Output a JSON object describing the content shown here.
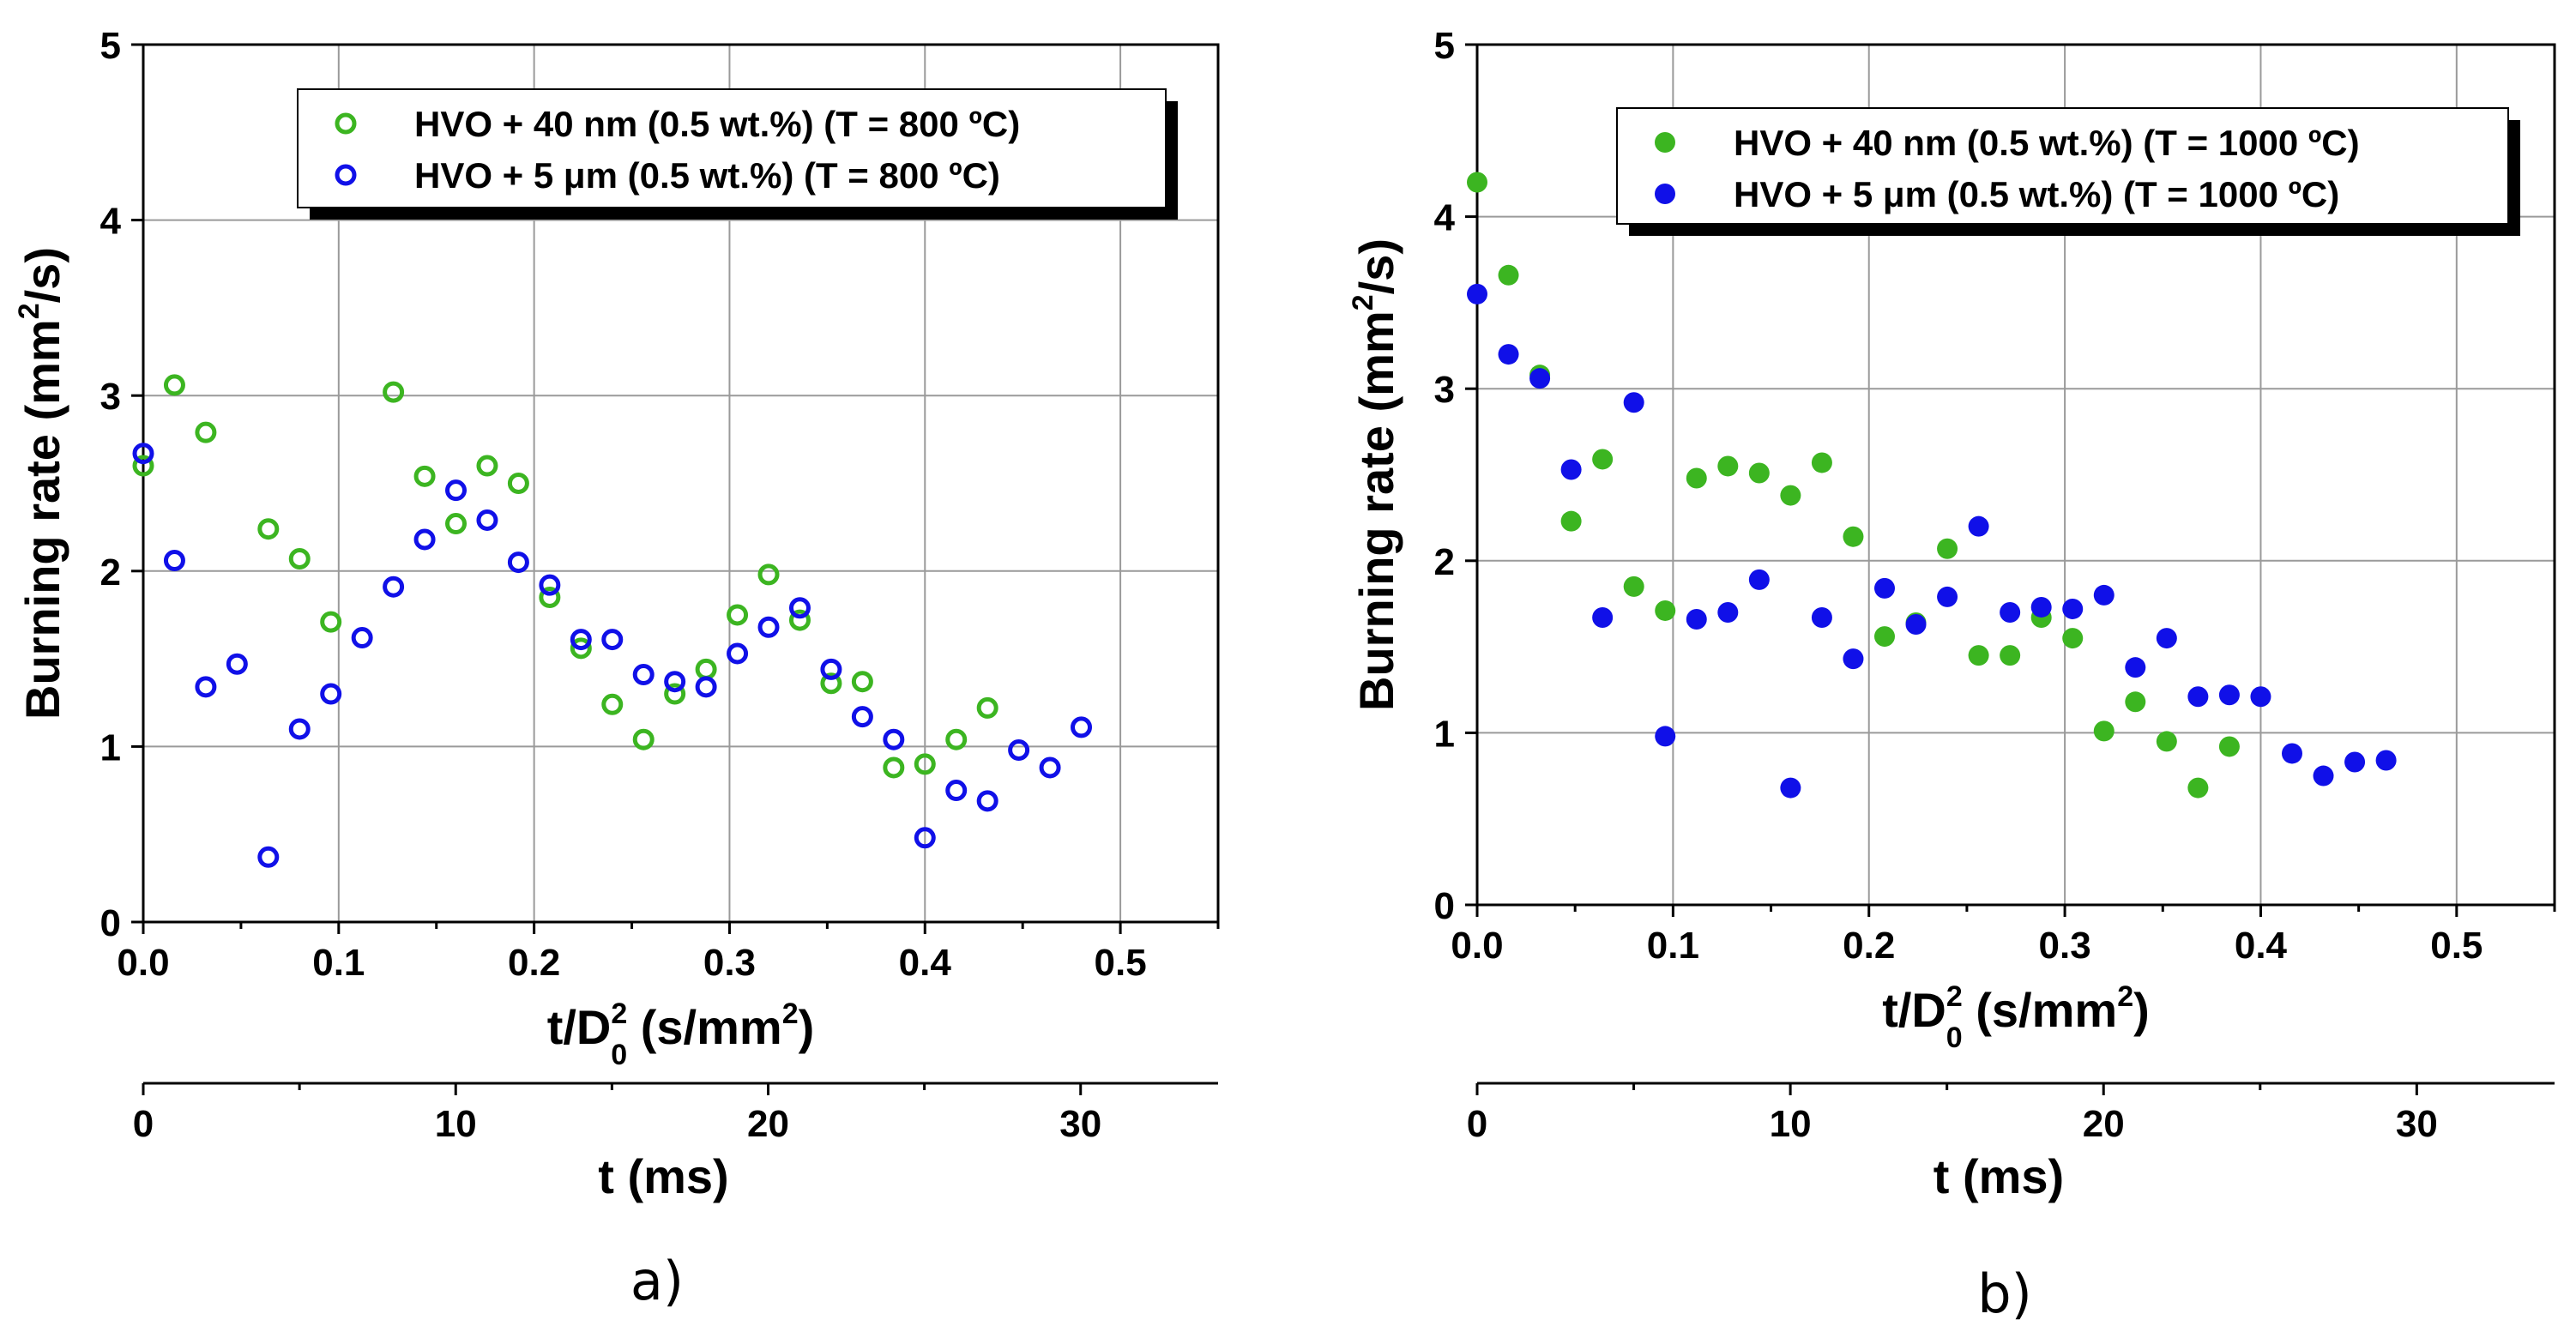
{
  "chart_data": [
    {
      "type": "scatter",
      "panel_label": "a)",
      "xlabel": "t/D",
      "xlabel_exp": "2",
      "xlabel_sub": "0",
      "xlabel_units": " (s/mm",
      "xlabel_units_exp": "2",
      "xlabel_close": ")",
      "ylabel": "Burning rate (mm",
      "ylabel_exp": "2",
      "ylabel_close": "/s)",
      "secondary_xlabel": "t (ms)",
      "xlim": [
        0,
        0.55
      ],
      "ylim": [
        0,
        5
      ],
      "xticks": [
        0.0,
        0.1,
        0.2,
        0.3,
        0.4,
        0.5
      ],
      "xtick_labels": [
        "0.0",
        "0.1",
        "0.2",
        "0.3",
        "0.4",
        "0.5"
      ],
      "yticks": [
        0,
        1,
        2,
        3,
        4,
        5
      ],
      "ytick_labels": [
        "0",
        "1",
        "2",
        "3",
        "4",
        "5"
      ],
      "secondary_xlim": [
        0,
        34.4
      ],
      "secondary_xticks": [
        0,
        10,
        20,
        30
      ],
      "secondary_xtick_labels": [
        "0",
        "10",
        "20",
        "30"
      ],
      "grid": true,
      "legend_position": "top-right",
      "marker": "open-circle",
      "series": [
        {
          "name": "HVO + 40 nm (0.5 wt.%) (T = 800 ºC)",
          "color": "#3cb521",
          "x": [
            0.0,
            0.016,
            0.032,
            0.064,
            0.08,
            0.096,
            0.128,
            0.144,
            0.16,
            0.176,
            0.192,
            0.208,
            0.224,
            0.24,
            0.256,
            0.272,
            0.288,
            0.304,
            0.32,
            0.336,
            0.352,
            0.368,
            0.384,
            0.4,
            0.416,
            0.432
          ],
          "y": [
            2.6,
            3.06,
            2.79,
            2.24,
            2.07,
            1.71,
            3.02,
            2.54,
            2.27,
            2.6,
            2.5,
            1.85,
            1.56,
            1.24,
            1.04,
            1.3,
            1.44,
            1.75,
            1.98,
            1.72,
            1.36,
            1.37,
            0.88,
            0.9,
            1.04,
            1.22
          ]
        },
        {
          "name": "HVO + 5 μm (0.5 wt.%) (T = 800 ºC)",
          "color": "#1010e8",
          "x": [
            0.0,
            0.016,
            0.032,
            0.048,
            0.064,
            0.08,
            0.096,
            0.112,
            0.128,
            0.144,
            0.16,
            0.176,
            0.192,
            0.208,
            0.224,
            0.24,
            0.256,
            0.272,
            0.288,
            0.304,
            0.32,
            0.336,
            0.352,
            0.368,
            0.384,
            0.4,
            0.416,
            0.432,
            0.448,
            0.464,
            0.48
          ],
          "y": [
            2.67,
            2.06,
            1.34,
            1.47,
            0.37,
            1.1,
            1.3,
            1.62,
            1.91,
            2.18,
            2.46,
            2.29,
            2.05,
            1.92,
            1.61,
            1.61,
            1.41,
            1.37,
            1.34,
            1.53,
            1.68,
            1.79,
            1.44,
            1.17,
            1.04,
            0.48,
            0.75,
            0.69,
            0.98,
            0.88,
            1.11
          ]
        }
      ]
    },
    {
      "type": "scatter",
      "panel_label": "b)",
      "xlabel": "t/D",
      "xlabel_exp": "2",
      "xlabel_sub": "0",
      "xlabel_units": " (s/mm",
      "xlabel_units_exp": "2",
      "xlabel_close": ")",
      "ylabel": "Burning rate (mm",
      "ylabel_exp": "2",
      "ylabel_close": "/s)",
      "secondary_xlabel": "t (ms)",
      "xlim": [
        0,
        0.55
      ],
      "ylim": [
        0,
        5
      ],
      "xticks": [
        0.0,
        0.1,
        0.2,
        0.3,
        0.4,
        0.5
      ],
      "xtick_labels": [
        "0.0",
        "0.1",
        "0.2",
        "0.3",
        "0.4",
        "0.5"
      ],
      "yticks": [
        0,
        1,
        2,
        3,
        4,
        5
      ],
      "ytick_labels": [
        "0",
        "1",
        "2",
        "3",
        "4",
        "5"
      ],
      "secondary_xlim": [
        0,
        34.4
      ],
      "secondary_xticks": [
        0,
        10,
        20,
        30
      ],
      "secondary_xtick_labels": [
        "0",
        "10",
        "20",
        "30"
      ],
      "grid": true,
      "legend_position": "top-right",
      "marker": "filled-circle",
      "series": [
        {
          "name": "HVO + 40 nm (0.5 wt.%) (T = 1000 ºC)",
          "color": "#3cb521",
          "x": [
            0.0,
            0.016,
            0.032,
            0.048,
            0.064,
            0.08,
            0.096,
            0.112,
            0.128,
            0.144,
            0.16,
            0.176,
            0.192,
            0.208,
            0.224,
            0.24,
            0.256,
            0.272,
            0.288,
            0.304,
            0.32,
            0.336,
            0.352,
            0.368,
            0.384
          ],
          "y": [
            4.2,
            3.66,
            3.08,
            2.23,
            2.59,
            1.85,
            1.71,
            2.48,
            2.55,
            2.51,
            2.38,
            2.57,
            2.14,
            1.56,
            1.64,
            2.07,
            1.45,
            1.45,
            1.67,
            1.55,
            1.01,
            1.18,
            0.95,
            0.68,
            0.92
          ]
        },
        {
          "name": "HVO + 5 μm (0.5 wt.%) (T = 1000 ºC)",
          "color": "#1010e8",
          "x": [
            0.0,
            0.016,
            0.032,
            0.048,
            0.064,
            0.08,
            0.096,
            0.112,
            0.128,
            0.144,
            0.16,
            0.176,
            0.192,
            0.208,
            0.224,
            0.24,
            0.256,
            0.272,
            0.288,
            0.304,
            0.32,
            0.336,
            0.352,
            0.368,
            0.384,
            0.4,
            0.416,
            0.432,
            0.448,
            0.464
          ],
          "y": [
            3.55,
            3.2,
            3.06,
            2.53,
            1.67,
            2.92,
            0.98,
            1.66,
            1.7,
            1.89,
            0.68,
            1.67,
            1.43,
            1.84,
            1.63,
            1.79,
            2.2,
            1.7,
            1.73,
            1.72,
            1.8,
            1.38,
            1.55,
            1.21,
            1.22,
            1.21,
            0.88,
            0.75,
            0.83,
            0.84
          ]
        }
      ]
    }
  ]
}
